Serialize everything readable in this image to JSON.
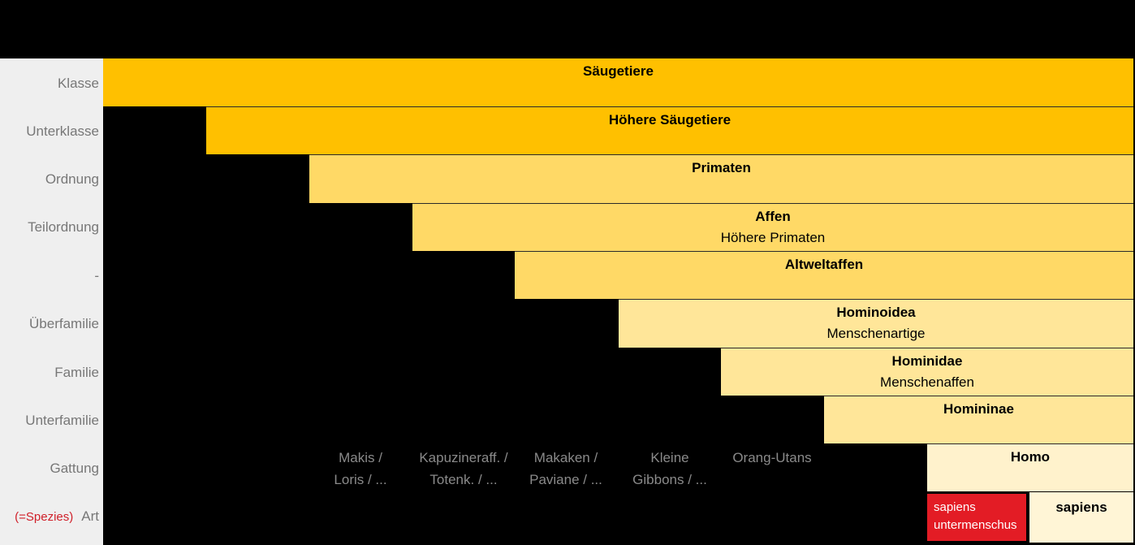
{
  "ranks": [
    "Klasse",
    "Unterklasse",
    "Ordnung",
    "Teilordnung",
    "-",
    "Überfamilie",
    "Familie",
    "Unterfamilie",
    "Gattung",
    "Art"
  ],
  "art_note": "(=Spezies)",
  "taxa": [
    {
      "title": "Säugetiere",
      "subtitle": "",
      "color": "#ffc000"
    },
    {
      "title": "Höhere Säugetiere",
      "subtitle": "",
      "color": "#ffc000"
    },
    {
      "title": "Primaten",
      "subtitle": "",
      "color": "#ffd966"
    },
    {
      "title": "Affen",
      "subtitle": "Höhere Primaten",
      "color": "#ffd966"
    },
    {
      "title": "Altweltaffen",
      "subtitle": "",
      "color": "#ffd966"
    },
    {
      "title": "Hominoidea",
      "subtitle": "Menschenartige",
      "color": "#ffe699"
    },
    {
      "title": "Hominidae",
      "subtitle": "Menschenaffen",
      "color": "#ffe699"
    },
    {
      "title": "Homininae",
      "subtitle": "",
      "color": "#ffe699"
    },
    {
      "title": "Homo",
      "subtitle": "",
      "color": "#fff2cc"
    }
  ],
  "genus_labels": [
    {
      "line1": "Makis /",
      "line2": "Loris / ..."
    },
    {
      "line1": "Kapuzineraff. /",
      "line2": "Totenk. / ..."
    },
    {
      "line1": "Makaken /",
      "line2": "Paviane / ..."
    },
    {
      "line1": "Kleine",
      "line2": "Gibbons / ..."
    },
    {
      "line1": "Orang-Utans",
      "line2": ""
    }
  ],
  "species": {
    "red": {
      "line1": "sapiens",
      "line2": "untermenschus",
      "color": "#e31c25"
    },
    "white": {
      "label": "sapiens"
    }
  }
}
